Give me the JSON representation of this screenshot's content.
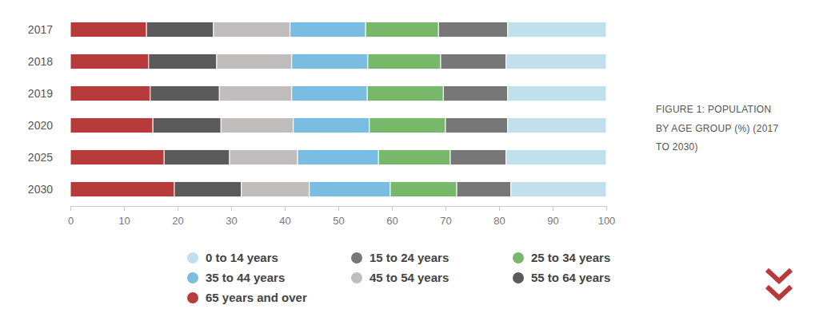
{
  "chart_data": {
    "type": "bar",
    "orientation": "horizontal",
    "stacked": true,
    "title": "FIGURE 1: POPULATION BY AGE GROUP (%) (2017 TO 2030)",
    "categories": [
      "2017",
      "2018",
      "2019",
      "2020",
      "2025",
      "2030"
    ],
    "series": [
      {
        "name": "0 to 14 years",
        "color": "#bfe0ec",
        "values": [
          18.4,
          18.7,
          18.4,
          18.4,
          18.7,
          17.8
        ]
      },
      {
        "name": "15 to 24 years",
        "color": "#777777",
        "values": [
          12.9,
          12.2,
          12.0,
          11.6,
          10.4,
          10.1
        ]
      },
      {
        "name": "25 to 34 years",
        "color": "#78b86a",
        "values": [
          13.6,
          13.6,
          14.2,
          14.2,
          13.4,
          12.4
        ]
      },
      {
        "name": "35 to 44 years",
        "color": "#7bbde0",
        "values": [
          14.1,
          14.2,
          14.1,
          14.2,
          15.1,
          15.1
        ]
      },
      {
        "name": "45 to 54 years",
        "color": "#c1bdbd",
        "values": [
          14.3,
          14.0,
          13.5,
          13.5,
          12.7,
          12.7
        ]
      },
      {
        "name": "55 to 64 years",
        "color": "#5a5a5a",
        "values": [
          12.5,
          12.7,
          12.9,
          12.7,
          12.2,
          12.5
        ]
      },
      {
        "name": "65 years and over",
        "color": "#b83b3b",
        "values": [
          14.2,
          14.6,
          14.9,
          15.4,
          17.5,
          19.4
        ]
      }
    ],
    "xlim": [
      0,
      100
    ],
    "xticks": [
      0,
      10,
      20,
      30,
      40,
      50,
      60,
      70,
      80,
      90,
      100
    ],
    "legend": "bottom"
  }
}
